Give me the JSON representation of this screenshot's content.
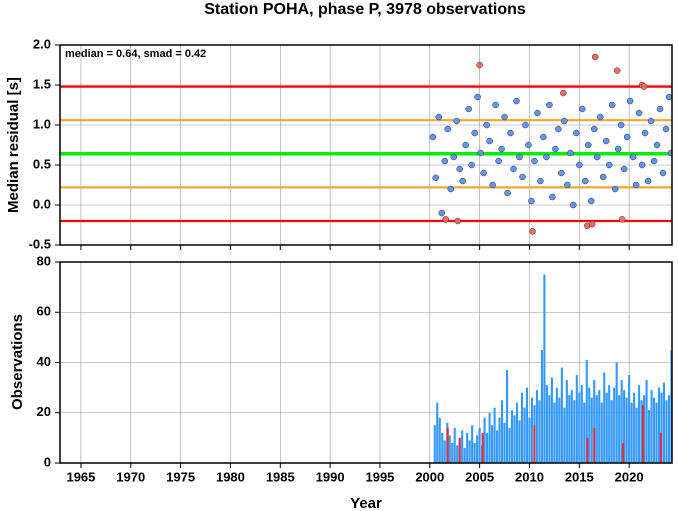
{
  "chart_data": [
    {
      "type": "scatter",
      "title": "Station POHA, phase P, 3978 observations",
      "ylabel": "Median residual [s]",
      "annotation": "median = 0.64, smad = 0.42",
      "xlim": [
        1962.9,
        2024.3
      ],
      "xticks": [
        1965,
        1970,
        1975,
        1980,
        1985,
        1990,
        1995,
        2000,
        2005,
        2010,
        2015,
        2020
      ],
      "ylim": [
        -0.5,
        2.0
      ],
      "yticks": [
        -0.5,
        {
          "value": 0,
          "label": "0.0"
        },
        0.5,
        {
          "value": 1,
          "label": "1.0"
        },
        1.5,
        {
          "value": 2,
          "label": "2.0"
        }
      ],
      "grid": true,
      "hlines": [
        {
          "value": 1.48,
          "color": "#ff0000"
        },
        {
          "value": -0.2,
          "color": "#ff0000"
        },
        {
          "value": 1.06,
          "color": "#f0a830"
        },
        {
          "value": 0.22,
          "color": "#f0a830"
        },
        {
          "value": 0.64,
          "color": "#00ee00"
        }
      ],
      "series": [
        {
          "color": "#6495ed",
          "x": [
            2000.3,
            2000.6,
            2000.9,
            2001.2,
            2001.5,
            2001.8,
            2002.1,
            2002.4,
            2002.7,
            2003.0,
            2003.3,
            2003.6,
            2003.9,
            2004.2,
            2004.5,
            2004.8,
            2005.1,
            2005.4,
            2005.7,
            2006.0,
            2006.3,
            2006.6,
            2006.9,
            2007.2,
            2007.5,
            2007.8,
            2008.1,
            2008.4,
            2008.7,
            2009.0,
            2009.3,
            2009.6,
            2009.9,
            2010.2,
            2010.5,
            2010.8,
            2011.1,
            2011.4,
            2011.7,
            2012.0,
            2012.3,
            2012.6,
            2012.9,
            2013.2,
            2013.5,
            2013.8,
            2014.1,
            2014.4,
            2014.7,
            2015.0,
            2015.3,
            2015.6,
            2015.9,
            2016.2,
            2016.5,
            2016.8,
            2017.1,
            2017.4,
            2017.7,
            2018.0,
            2018.3,
            2018.6,
            2018.9,
            2019.2,
            2019.5,
            2019.8,
            2020.1,
            2020.4,
            2020.7,
            2021.0,
            2021.3,
            2021.6,
            2021.9,
            2022.2,
            2022.5,
            2022.8,
            2023.1,
            2023.4,
            2023.7,
            2024.0,
            2024.2
          ],
          "values": [
            0.85,
            0.34,
            1.1,
            -0.1,
            0.55,
            0.95,
            0.2,
            0.6,
            1.05,
            0.45,
            0.3,
            0.75,
            1.2,
            0.5,
            0.9,
            1.35,
            0.65,
            0.4,
            1.0,
            0.8,
            0.25,
            1.25,
            0.55,
            0.7,
            1.1,
            0.15,
            0.9,
            0.45,
            1.3,
            0.6,
            0.35,
            1.0,
            0.75,
            0.05,
            0.55,
            1.15,
            0.3,
            0.85,
            0.6,
            1.25,
            0.1,
            0.7,
            0.95,
            0.4,
            1.05,
            0.25,
            0.65,
            0.0,
            0.9,
            0.5,
            1.2,
            0.3,
            0.75,
            0.05,
            0.95,
            0.6,
            1.1,
            0.35,
            0.8,
            0.5,
            1.25,
            0.2,
            0.7,
            1.0,
            0.45,
            0.85,
            1.3,
            0.6,
            0.25,
            1.15,
            0.5,
            0.9,
            0.3,
            1.05,
            0.55,
            0.75,
            1.2,
            0.4,
            0.95,
            1.35,
            0.65
          ]
        },
        {
          "color": "#ff6a5a",
          "x": [
            2001.6,
            2002.8,
            2005.0,
            2010.3,
            2013.4,
            2015.8,
            2016.3,
            2016.6,
            2018.8,
            2019.3,
            2021.3,
            2021.5
          ],
          "values": [
            -0.18,
            -0.2,
            1.75,
            -0.33,
            1.4,
            -0.26,
            -0.24,
            1.85,
            1.68,
            -0.18,
            1.5,
            1.48
          ]
        }
      ]
    },
    {
      "type": "bar",
      "ylabel": "Observations",
      "xlabel": "Year",
      "xlim": [
        1962.9,
        2024.3
      ],
      "xticks": [
        1965,
        1970,
        1975,
        1980,
        1985,
        1990,
        1995,
        2000,
        2005,
        2010,
        2015,
        2020
      ],
      "ylim": [
        0,
        80
      ],
      "yticks": [
        0,
        20,
        40,
        60,
        80
      ],
      "grid": true,
      "series": [
        {
          "color": "#3399ff",
          "x": [
            2000.5,
            2000.75,
            2001,
            2001.25,
            2001.5,
            2001.75,
            2002,
            2002.25,
            2002.5,
            2002.75,
            2003,
            2003.25,
            2003.5,
            2003.75,
            2004,
            2004.25,
            2004.5,
            2004.75,
            2005,
            2005.25,
            2005.5,
            2005.75,
            2006,
            2006.25,
            2006.5,
            2006.75,
            2007,
            2007.25,
            2007.5,
            2007.75,
            2008,
            2008.25,
            2008.5,
            2008.75,
            2009,
            2009.25,
            2009.5,
            2009.75,
            2010,
            2010.25,
            2010.5,
            2010.75,
            2011,
            2011.25,
            2011.5,
            2011.75,
            2012,
            2012.25,
            2012.5,
            2012.75,
            2013,
            2013.25,
            2013.5,
            2013.75,
            2014,
            2014.25,
            2014.5,
            2014.75,
            2015,
            2015.25,
            2015.5,
            2015.75,
            2016,
            2016.25,
            2016.5,
            2016.75,
            2017,
            2017.25,
            2017.5,
            2017.75,
            2018,
            2018.25,
            2018.5,
            2018.75,
            2019,
            2019.25,
            2019.5,
            2019.75,
            2020,
            2020.25,
            2020.5,
            2020.75,
            2021,
            2021.25,
            2021.5,
            2021.75,
            2022,
            2022.25,
            2022.5,
            2022.75,
            2023,
            2023.25,
            2023.5,
            2023.75,
            2024,
            2024.25
          ],
          "values": [
            15,
            24,
            18,
            12,
            9,
            16,
            11,
            8,
            14,
            7,
            10,
            13,
            6,
            12,
            9,
            15,
            8,
            11,
            14,
            7,
            18,
            12,
            20,
            15,
            22,
            13,
            18,
            25,
            16,
            37,
            14,
            21,
            19,
            24,
            17,
            28,
            22,
            30,
            18,
            26,
            23,
            29,
            25,
            45,
            75,
            31,
            27,
            34,
            24,
            30,
            26,
            38,
            22,
            33,
            27,
            29,
            25,
            35,
            28,
            31,
            24,
            41,
            30,
            26,
            33,
            27,
            29,
            24,
            36,
            28,
            31,
            25,
            30,
            40,
            27,
            33,
            29,
            26,
            35,
            24,
            28,
            22,
            31,
            25,
            27,
            33,
            21,
            29,
            26,
            24,
            30,
            28,
            32,
            25,
            27,
            45
          ]
        },
        {
          "color": "#e0303a",
          "x": [
            2001.8,
            2003.0,
            2005.3,
            2010.5,
            2015.8,
            2016.5,
            2019.4,
            2021.4,
            2023.2
          ],
          "values": [
            14,
            10,
            12,
            15,
            10,
            14,
            8,
            23,
            12
          ]
        }
      ]
    }
  ]
}
